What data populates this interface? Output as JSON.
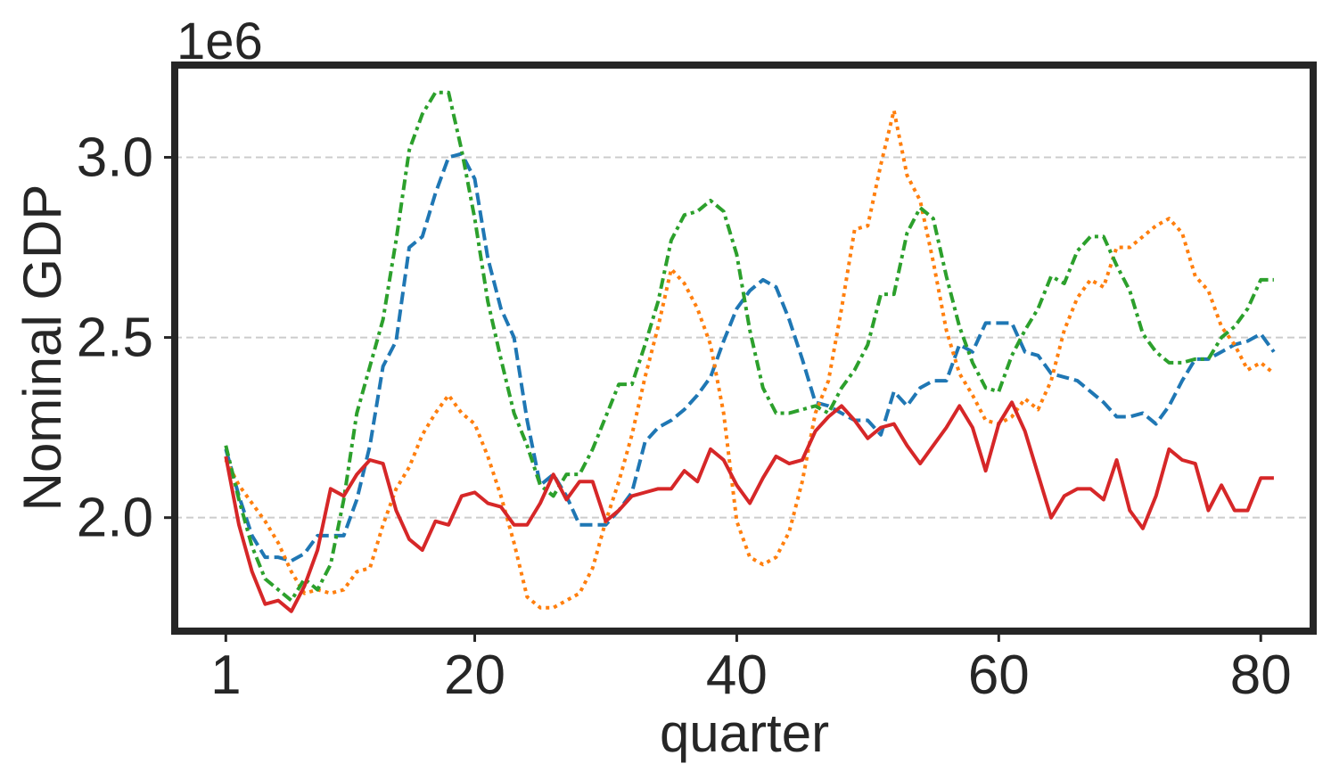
{
  "chart_data": {
    "type": "line",
    "xlabel": "quarter",
    "ylabel": "Nominal GDP",
    "offset_text": "1e6",
    "xlim": [
      -2.9,
      84.0
    ],
    "ylim": [
      1.685,
      3.256
    ],
    "y_scale_factor": 1000000,
    "x_ticks": [
      1,
      20,
      40,
      60,
      80
    ],
    "y_ticks": [
      2.0,
      2.5,
      3.0
    ],
    "y_tick_labels": [
      "2.0",
      "2.5",
      "3.0"
    ],
    "grid": "horizontal dashed",
    "legend": "none",
    "series": [
      {
        "color": "#1f77b4",
        "style": "dashed",
        "values": [
          2.19,
          2.06,
          1.95,
          1.89,
          1.89,
          1.88,
          1.9,
          1.95,
          1.95,
          1.95,
          2.05,
          2.2,
          2.42,
          2.49,
          2.75,
          2.78,
          2.9,
          3.0,
          3.01,
          2.94,
          2.72,
          2.58,
          2.5,
          2.27,
          2.09,
          2.12,
          2.06,
          1.98,
          1.98,
          1.98,
          2.02,
          2.07,
          2.21,
          2.25,
          2.27,
          2.3,
          2.34,
          2.39,
          2.49,
          2.58,
          2.63,
          2.66,
          2.64,
          2.55,
          2.44,
          2.32,
          2.31,
          2.29,
          2.27,
          2.27,
          2.23,
          2.35,
          2.31,
          2.36,
          2.38,
          2.38,
          2.48,
          2.46,
          2.54,
          2.54,
          2.54,
          2.46,
          2.45,
          2.4,
          2.39,
          2.38,
          2.35,
          2.32,
          2.28,
          2.28,
          2.29,
          2.26,
          2.31,
          2.38,
          2.44,
          2.44,
          2.46,
          2.48,
          2.49,
          2.51,
          2.46
        ]
      },
      {
        "color": "#ff7f0e",
        "style": "dotted",
        "values": [
          2.16,
          2.09,
          2.04,
          1.99,
          1.93,
          1.85,
          1.79,
          1.8,
          1.79,
          1.8,
          1.85,
          1.86,
          1.98,
          2.08,
          2.14,
          2.23,
          2.29,
          2.34,
          2.29,
          2.26,
          2.17,
          2.06,
          1.93,
          1.78,
          1.75,
          1.75,
          1.77,
          1.79,
          1.86,
          1.99,
          2.1,
          2.23,
          2.39,
          2.53,
          2.69,
          2.65,
          2.58,
          2.48,
          2.29,
          1.99,
          1.89,
          1.87,
          1.89,
          1.96,
          2.1,
          2.29,
          2.38,
          2.58,
          2.8,
          2.81,
          2.98,
          3.13,
          2.95,
          2.88,
          2.71,
          2.52,
          2.4,
          2.34,
          2.27,
          2.26,
          2.28,
          2.33,
          2.3,
          2.38,
          2.52,
          2.61,
          2.66,
          2.64,
          2.75,
          2.75,
          2.78,
          2.81,
          2.83,
          2.79,
          2.67,
          2.63,
          2.53,
          2.48,
          2.41,
          2.43,
          2.4
        ]
      },
      {
        "color": "#2ca02c",
        "style": "dashdot",
        "values": [
          2.2,
          2.05,
          1.92,
          1.83,
          1.8,
          1.77,
          1.83,
          1.8,
          1.87,
          2.05,
          2.29,
          2.42,
          2.55,
          2.77,
          3.02,
          3.12,
          3.18,
          3.18,
          3.02,
          2.83,
          2.6,
          2.44,
          2.29,
          2.2,
          2.09,
          2.06,
          2.12,
          2.12,
          2.19,
          2.28,
          2.37,
          2.37,
          2.48,
          2.6,
          2.77,
          2.84,
          2.85,
          2.88,
          2.85,
          2.73,
          2.52,
          2.36,
          2.29,
          2.29,
          2.3,
          2.31,
          2.29,
          2.36,
          2.41,
          2.48,
          2.62,
          2.62,
          2.79,
          2.86,
          2.83,
          2.67,
          2.53,
          2.43,
          2.36,
          2.35,
          2.45,
          2.52,
          2.58,
          2.67,
          2.65,
          2.74,
          2.78,
          2.78,
          2.7,
          2.63,
          2.51,
          2.46,
          2.43,
          2.43,
          2.44,
          2.44,
          2.5,
          2.53,
          2.58,
          2.66,
          2.66
        ]
      },
      {
        "color": "#d62728",
        "style": "solid",
        "values": [
          2.17,
          1.98,
          1.85,
          1.76,
          1.77,
          1.74,
          1.81,
          1.91,
          2.08,
          2.06,
          2.12,
          2.16,
          2.15,
          2.02,
          1.94,
          1.91,
          1.99,
          1.98,
          2.06,
          2.07,
          2.04,
          2.03,
          1.98,
          1.98,
          2.04,
          2.12,
          2.05,
          2.1,
          2.1,
          1.99,
          2.02,
          2.06,
          2.07,
          2.08,
          2.08,
          2.13,
          2.1,
          2.19,
          2.16,
          2.09,
          2.04,
          2.11,
          2.17,
          2.15,
          2.16,
          2.24,
          2.28,
          2.31,
          2.27,
          2.22,
          2.25,
          2.26,
          2.2,
          2.15,
          2.2,
          2.25,
          2.31,
          2.25,
          2.13,
          2.26,
          2.32,
          2.24,
          2.12,
          2.0,
          2.06,
          2.08,
          2.08,
          2.05,
          2.16,
          2.02,
          1.97,
          2.06,
          2.19,
          2.16,
          2.15,
          2.02,
          2.09,
          2.02,
          2.02,
          2.11,
          2.11
        ]
      }
    ]
  }
}
